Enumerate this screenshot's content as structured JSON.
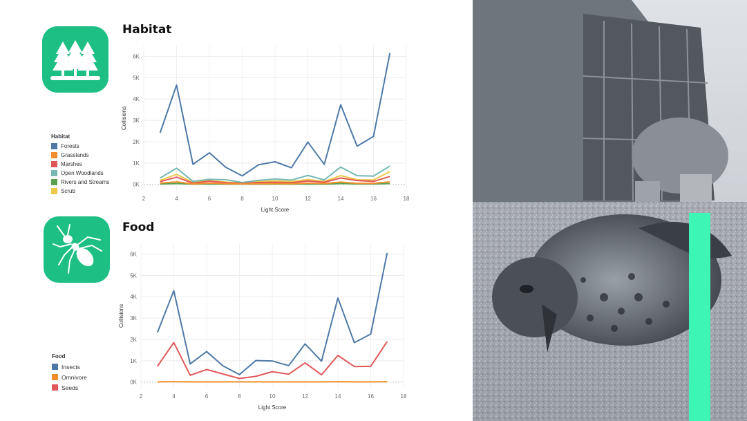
{
  "panels": [
    {
      "id": "habitat",
      "title": "Habitat",
      "icon": "forest-icon",
      "legend_title": "Habitat",
      "chart_data": {
        "type": "line",
        "xlabel": "Light Score",
        "ylabel": "Collisions",
        "xlim": [
          2,
          18
        ],
        "ylim": [
          -300,
          6500
        ],
        "xticks": [
          2,
          4,
          6,
          8,
          10,
          12,
          14,
          16,
          18
        ],
        "yticks": [
          0,
          1000,
          2000,
          3000,
          4000,
          5000,
          6000
        ],
        "ytick_labels": [
          "0K",
          "1K",
          "2K",
          "3K",
          "4K",
          "5K",
          "6K"
        ],
        "x": [
          3,
          4,
          5,
          6,
          7,
          8,
          9,
          10,
          11,
          12,
          13,
          14,
          15,
          16,
          17
        ],
        "grid": true,
        "series": [
          {
            "name": "Forests",
            "color": "#4e79a7",
            "values": [
              2420,
              4650,
              940,
              1480,
              800,
              400,
              920,
              1060,
              780,
              1980,
              940,
              3730,
              1790,
              2250,
              6150
            ]
          },
          {
            "name": "Grasslands",
            "color": "#f28e2b",
            "values": [
              60,
              120,
              20,
              60,
              30,
              20,
              30,
              40,
              30,
              60,
              40,
              110,
              50,
              50,
              120
            ]
          },
          {
            "name": "Marshes",
            "color": "#e15759",
            "values": [
              130,
              340,
              60,
              150,
              80,
              40,
              90,
              100,
              80,
              160,
              100,
              300,
              180,
              140,
              370
            ]
          },
          {
            "name": "Open Woodlands",
            "color": "#76b7b2",
            "values": [
              300,
              760,
              140,
              240,
              220,
              90,
              190,
              250,
              200,
              420,
              210,
              810,
              410,
              390,
              860
            ]
          },
          {
            "name": "Rivers and Streams",
            "color": "#59a14f",
            "values": [
              20,
              40,
              10,
              20,
              10,
              10,
              10,
              20,
              10,
              20,
              10,
              40,
              20,
              20,
              40
            ]
          },
          {
            "name": "Scrub",
            "color": "#edc948",
            "values": [
              190,
              470,
              90,
              180,
              110,
              60,
              130,
              160,
              130,
              230,
              140,
              410,
              220,
              210,
              600
            ]
          }
        ]
      }
    },
    {
      "id": "food",
      "title": "Food",
      "icon": "insect-icon",
      "legend_title": "Food",
      "chart_data": {
        "type": "line",
        "xlabel": "Light Score",
        "ylabel": "Collisions",
        "xlim": [
          2,
          18
        ],
        "ylim": [
          -300,
          6500
        ],
        "xticks": [
          2,
          4,
          6,
          8,
          10,
          12,
          14,
          16,
          18
        ],
        "yticks": [
          0,
          1000,
          2000,
          3000,
          4000,
          5000,
          6000
        ],
        "ytick_labels": [
          "0K",
          "1K",
          "2K",
          "3K",
          "4K",
          "5K",
          "6K"
        ],
        "x": [
          3,
          4,
          5,
          6,
          7,
          8,
          9,
          10,
          11,
          12,
          13,
          14,
          15,
          16,
          17
        ],
        "grid": true,
        "series": [
          {
            "name": "Insects",
            "color": "#4e79a7",
            "values": [
              2320,
              4280,
              850,
              1430,
              760,
              350,
              1010,
              990,
              770,
              1790,
              980,
              3940,
              1850,
              2250,
              6050
            ]
          },
          {
            "name": "Omnivore",
            "color": "#f28e2b",
            "values": [
              10,
              20,
              10,
              10,
              10,
              10,
              10,
              10,
              10,
              10,
              10,
              20,
              10,
              10,
              20
            ]
          },
          {
            "name": "Seeds",
            "color": "#e15759",
            "values": [
              740,
              1850,
              320,
              590,
              380,
              170,
              270,
              490,
              370,
              900,
              340,
              1250,
              730,
              740,
              1900
            ]
          }
        ]
      }
    }
  ]
}
